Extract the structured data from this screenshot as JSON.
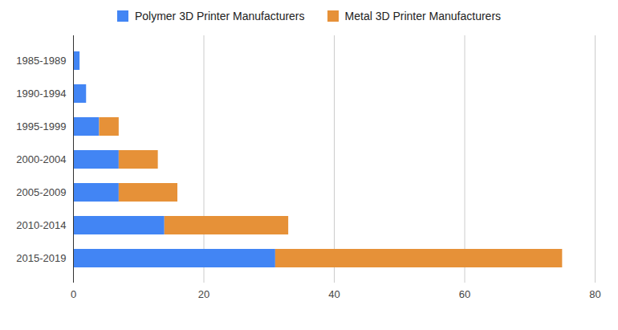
{
  "chart_data": {
    "type": "bar",
    "orientation": "horizontal",
    "stacked": true,
    "categories": [
      "1985-1989",
      "1990-1994",
      "1995-1999",
      "2000-2004",
      "2005-2009",
      "2010-2014",
      "2015-2019"
    ],
    "series": [
      {
        "name": "Polymer 3D Printer Manufacturers",
        "color": "#4285f4",
        "values": [
          1,
          2,
          4,
          7,
          7,
          14,
          31
        ]
      },
      {
        "name": "Metal 3D Printer Manufacturers",
        "color": "#e69138",
        "values": [
          0,
          0,
          3,
          6,
          9,
          19,
          44
        ]
      }
    ],
    "xlim": [
      0,
      80
    ],
    "xticks": [
      0,
      20,
      40,
      60,
      80
    ],
    "grid": true,
    "legend": "top"
  }
}
